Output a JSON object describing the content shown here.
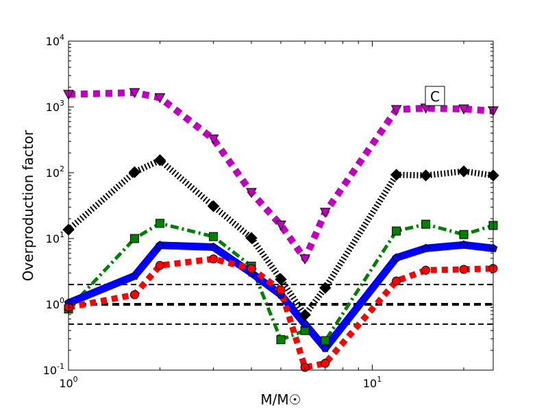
{
  "chart_data": {
    "type": "line",
    "title": "",
    "panel_label": "C",
    "xlabel": "M/M☉",
    "ylabel": "Overproduction factor",
    "xscale": "log",
    "yscale": "log",
    "xlim": [
      1,
      25
    ],
    "ylim": [
      0.1,
      10000
    ],
    "x_ticks": [
      {
        "value": 1,
        "label": "10",
        "exp": "0"
      },
      {
        "value": 10,
        "label": "10",
        "exp": "1"
      }
    ],
    "y_ticks": [
      {
        "value": 0.1,
        "label": "10",
        "exp": "-1"
      },
      {
        "value": 1,
        "label": "10",
        "exp": "0"
      },
      {
        "value": 10,
        "label": "10",
        "exp": "1"
      },
      {
        "value": 100,
        "label": "10",
        "exp": "2"
      },
      {
        "value": 1000,
        "label": "10",
        "exp": "3"
      },
      {
        "value": 10000,
        "label": "10",
        "exp": "4"
      }
    ],
    "x": [
      1,
      1.65,
      2,
      3,
      4,
      5,
      6,
      7,
      12,
      15,
      20,
      25
    ],
    "reference_lines": [
      {
        "y": 0.5,
        "style": "dashed"
      },
      {
        "y": 1,
        "style": "dashed-thick"
      },
      {
        "y": 2,
        "style": "dashed"
      }
    ],
    "series": [
      {
        "name": "magenta",
        "color": "#bf00bf",
        "marker": "triangle-down",
        "style": "dotted-thick",
        "values": [
          1550,
          1650,
          1380,
          325,
          50,
          16,
          4.9,
          25,
          910,
          960,
          930,
          870
        ]
      },
      {
        "name": "black",
        "color": "#000000",
        "marker": "diamond",
        "style": "dotted-fine",
        "values": [
          13.6,
          102,
          155,
          31,
          10.2,
          2.4,
          0.69,
          1.78,
          93,
          91,
          105,
          91
        ]
      },
      {
        "name": "green",
        "color": "#008000",
        "marker": "square",
        "style": "dash-dot",
        "values": [
          0.85,
          10,
          17,
          10.7,
          3.8,
          0.29,
          0.4,
          0.28,
          13,
          16.5,
          11.5,
          15.8
        ]
      },
      {
        "name": "blue",
        "color": "#0000ff",
        "marker": "pentagon",
        "style": "solid",
        "values": [
          1.05,
          2.7,
          7.9,
          7.4,
          3.0,
          1.4,
          0.5,
          0.215,
          5.1,
          7.1,
          8.0,
          7.1
        ]
      },
      {
        "name": "red",
        "color": "#ff0000",
        "marker": "circle",
        "style": "dashed",
        "values": [
          0.9,
          1.4,
          3.9,
          4.9,
          3.5,
          1.65,
          0.11,
          0.127,
          2.26,
          3.3,
          3.4,
          3.5
        ]
      }
    ]
  }
}
